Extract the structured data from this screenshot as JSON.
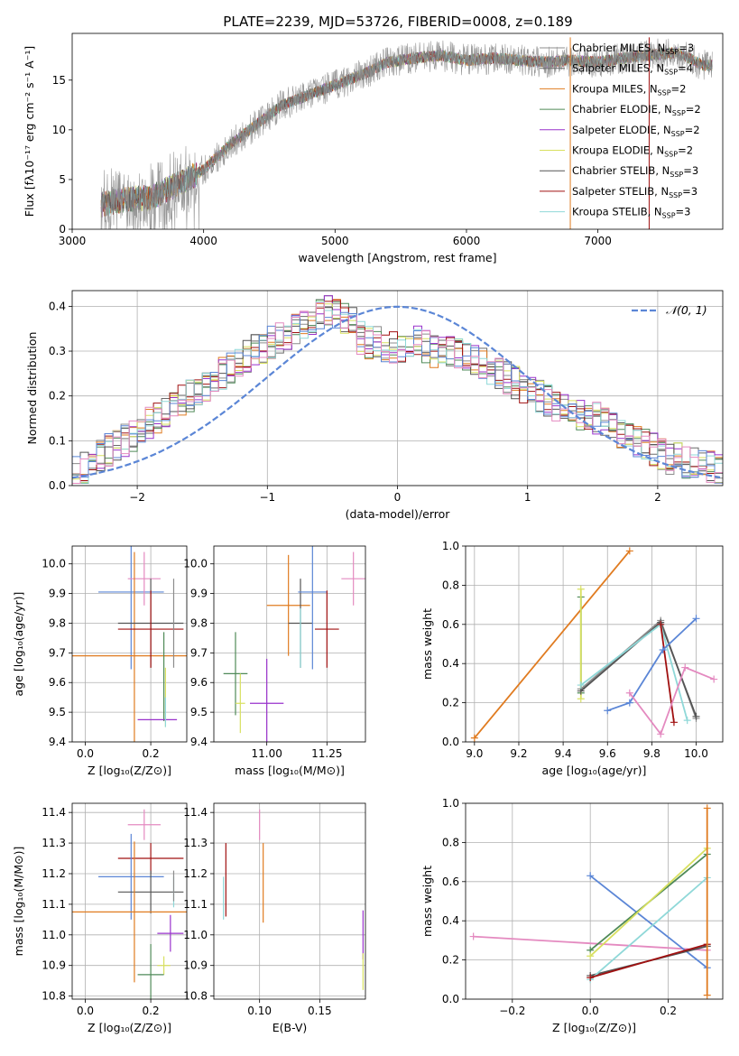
{
  "title": "PLATE=2239, MJD=53726, FIBERID=0008, z=0.189",
  "colors": {
    "Chabrier MILES": "#8c8c8c",
    "Salpeter MILES": "#6a6a6a",
    "Kroupa MILES": "#e07b20",
    "Chabrier ELODIE": "#4f8a58",
    "Salpeter ELODIE": "#9932cc",
    "Kroupa ELODIE": "#d8e060",
    "Chabrier STELIB": "#555555",
    "Salpeter STELIB": "#a01010",
    "Kroupa STELIB": "#8fd8d8",
    "blue": "#5b86d6",
    "pink": "#e48ac0"
  },
  "chart_data": [
    {
      "type": "line",
      "name": "spectrum",
      "xlabel": "wavelength [Angstrom, rest frame]",
      "ylabel": "Flux [fλ10⁻¹⁷ erg cm⁻² s⁻¹ A⁻¹]",
      "xlim": [
        3000,
        7950
      ],
      "ylim": [
        0,
        19.7
      ],
      "xticks": [
        "3000",
        "4000",
        "5000",
        "6000",
        "7000"
      ],
      "yticks": [
        "0",
        "5",
        "10",
        "15"
      ],
      "x": [
        3220,
        3400,
        3600,
        3800,
        4000,
        4200,
        4400,
        4600,
        4800,
        5000,
        5200,
        5400,
        5600,
        5800,
        6000,
        6200,
        6400,
        6600,
        6800,
        7000,
        7200,
        7400,
        7600,
        7800
      ],
      "y": [
        2.5,
        3.0,
        3.2,
        4.5,
        6.0,
        8.5,
        10.5,
        12.5,
        13.5,
        14.5,
        15.5,
        16.8,
        17.2,
        17.5,
        17.0,
        17.2,
        17.0,
        16.8,
        17.0,
        16.8,
        17.2,
        17.5,
        17.8,
        16.5
      ],
      "legend": [
        {
          "label": "Chabrier MILES, N",
          "sub": "SSP",
          "n": "=3"
        },
        {
          "label": "Salpeter MILES, N",
          "sub": "SSP",
          "n": "=4"
        },
        {
          "label": "Kroupa MILES, N",
          "sub": "SSP",
          "n": "=2"
        },
        {
          "label": "Chabrier ELODIE, N",
          "sub": "SSP",
          "n": "=2"
        },
        {
          "label": "Salpeter ELODIE, N",
          "sub": "SSP",
          "n": "=2"
        },
        {
          "label": "Kroupa ELODIE, N",
          "sub": "SSP",
          "n": "=2"
        },
        {
          "label": "Chabrier STELIB, N",
          "sub": "SSP",
          "n": "=3"
        },
        {
          "label": "Salpeter STELIB, N",
          "sub": "SSP",
          "n": "=3"
        },
        {
          "label": "Kroupa STELIB, N",
          "sub": "SSP",
          "n": "=3"
        }
      ],
      "legend_placement": "right"
    },
    {
      "type": "line",
      "name": "residual-histogram",
      "xlabel": "(data-model)/error",
      "ylabel": "Normed distribution",
      "xlim": [
        -2.5,
        2.5
      ],
      "ylim": [
        0,
        0.435
      ],
      "xticks": [
        "−2",
        "−1",
        "0",
        "1",
        "2"
      ],
      "yticks": [
        "0.0",
        "0.1",
        "0.2",
        "0.3",
        "0.4"
      ],
      "grid": true,
      "gaussian_label": "𝒩(0, 1)",
      "legend_placement": "top-right",
      "bin_width": 0.1,
      "bin_start": -2.5,
      "hist_base": [
        0.03,
        0.04,
        0.05,
        0.07,
        0.08,
        0.09,
        0.1,
        0.11,
        0.12,
        0.14,
        0.15,
        0.16,
        0.18,
        0.19,
        0.2,
        0.21,
        0.22,
        0.24,
        0.25,
        0.26,
        0.27,
        0.29,
        0.3,
        0.31,
        0.32,
        0.33,
        0.34,
        0.35,
        0.36,
        0.37,
        0.38,
        0.39,
        0.38,
        0.37,
        0.36,
        0.33,
        0.32,
        0.32,
        0.31,
        0.31,
        0.3,
        0.31,
        0.32,
        0.31,
        0.3,
        0.31,
        0.3,
        0.29,
        0.29,
        0.28,
        0.27,
        0.26,
        0.25,
        0.24,
        0.23,
        0.22,
        0.21,
        0.2,
        0.19,
        0.18,
        0.17,
        0.16,
        0.16,
        0.15,
        0.15,
        0.14,
        0.13,
        0.12,
        0.11,
        0.1,
        0.09,
        0.08,
        0.07,
        0.06,
        0.06,
        0.05,
        0.05,
        0.05,
        0.04,
        0.04
      ],
      "hist_series": [
        "Chabrier MILES",
        "Salpeter MILES",
        "Kroupa MILES",
        "Chabrier ELODIE",
        "Salpeter ELODIE",
        "Kroupa ELODIE",
        "Chabrier STELIB",
        "Salpeter STELIB",
        "Kroupa STELIB",
        "blue",
        "pink"
      ]
    },
    {
      "type": "scatter",
      "name": "age-vs-Z",
      "xlabel": "Z [log₁₀(Z/Z⊙)]",
      "ylabel": "age  [log₁₀(age/yr)]",
      "xlim": [
        -0.04,
        0.31
      ],
      "ylim": [
        9.4,
        10.06
      ],
      "xticks": [
        {
          "v": 0.0,
          "t": "0.0"
        },
        {
          "v": 0.2,
          "t": "0.2"
        }
      ],
      "yticks": [
        {
          "v": 9.4,
          "t": "9.4"
        },
        {
          "v": 9.5,
          "t": "9.5"
        },
        {
          "v": 9.6,
          "t": "9.6"
        },
        {
          "v": 9.7,
          "t": "9.7"
        },
        {
          "v": 9.8,
          "t": "9.8"
        },
        {
          "v": 9.9,
          "t": "9.9"
        },
        {
          "v": 10.0,
          "t": "10.0"
        }
      ],
      "points": [
        {
          "c": "blue",
          "x": 0.14,
          "xe": 0.1,
          "y": 9.905,
          "ye": 0.26
        },
        {
          "c": "pink",
          "x": 0.18,
          "xe": 0.05,
          "y": 9.95,
          "ye": 0.09
        },
        {
          "c": "Kroupa MILES",
          "x": 0.15,
          "xe": 0.24,
          "y": 9.69,
          "ye": 0.35
        },
        {
          "c": "Chabrier STELIB",
          "x": 0.2,
          "xe": 0.1,
          "y": 9.8,
          "ye": 0.15
        },
        {
          "c": "Salpeter STELIB",
          "x": 0.2,
          "xe": 0.1,
          "y": 9.78,
          "ye": 0.13
        },
        {
          "c": "Chabrier ELODIE",
          "x": 0.24,
          "xe": 0.0,
          "y": 9.62,
          "ye": 0.15
        },
        {
          "c": "Kroupa ELODIE",
          "x": 0.245,
          "xe": 0.0,
          "y": 9.55,
          "ye": 0.1
        },
        {
          "c": "Salpeter ELODIE",
          "x": 0.22,
          "xe": 0.06,
          "y": 9.475,
          "ye": 0.0
        },
        {
          "c": "Kroupa STELIB",
          "x": 0.245,
          "xe": 0.0,
          "y": 9.5,
          "ye": 0.05
        },
        {
          "c": "Chabrier MILES",
          "x": 0.27,
          "xe": 0.0,
          "y": 9.8,
          "ye": 0.15
        }
      ]
    },
    {
      "type": "scatter",
      "name": "age-vs-mass",
      "xlabel": "mass [log₁₀(M/M⊙)]",
      "ylabel": "",
      "xlim": [
        10.78,
        11.41
      ],
      "ylim": [
        9.4,
        10.06
      ],
      "xticks": [
        {
          "v": 11.0,
          "t": "11.00"
        },
        {
          "v": 11.25,
          "t": "11.25"
        }
      ],
      "yticks": [
        {
          "v": 9.4,
          "t": "9.4"
        },
        {
          "v": 9.5,
          "t": "9.5"
        },
        {
          "v": 9.6,
          "t": "9.6"
        },
        {
          "v": 9.7,
          "t": "9.7"
        },
        {
          "v": 9.8,
          "t": "9.8"
        },
        {
          "v": 9.9,
          "t": "9.9"
        },
        {
          "v": 10.0,
          "t": "10.0"
        }
      ],
      "points": [
        {
          "c": "Chabrier ELODIE",
          "x": 10.87,
          "xe": 0.05,
          "y": 9.63,
          "ye": 0.14
        },
        {
          "c": "Kroupa ELODIE",
          "x": 10.89,
          "xe": 0.02,
          "y": 9.53,
          "ye": 0.1
        },
        {
          "c": "Salpeter ELODIE",
          "x": 11.0,
          "xe": 0.07,
          "y": 9.53,
          "ye": 0.15
        },
        {
          "c": "Kroupa MILES",
          "x": 11.09,
          "xe": 0.09,
          "y": 9.86,
          "ye": 0.17
        },
        {
          "c": "Chabrier STELIB",
          "x": 11.14,
          "xe": 0.05,
          "y": 9.8,
          "ye": 0.15
        },
        {
          "c": "Kroupa STELIB",
          "x": 11.14,
          "xe": 0.0,
          "y": 9.75,
          "ye": 0.1
        },
        {
          "c": "blue",
          "x": 11.19,
          "xe": 0.06,
          "y": 9.905,
          "ye": 0.26
        },
        {
          "c": "Salpeter STELIB",
          "x": 11.25,
          "xe": 0.05,
          "y": 9.78,
          "ye": 0.13
        },
        {
          "c": "pink",
          "x": 11.36,
          "xe": 0.05,
          "y": 9.95,
          "ye": 0.09
        }
      ]
    },
    {
      "type": "line",
      "name": "mass-weight-vs-age",
      "xlabel": "age  [log₁₀(age/yr)]",
      "ylabel": "mass weight",
      "xlim": [
        8.96,
        10.12
      ],
      "ylim": [
        0,
        1.0
      ],
      "xticks": [
        {
          "v": 9.0,
          "t": "9.0"
        },
        {
          "v": 9.2,
          "t": "9.2"
        },
        {
          "v": 9.4,
          "t": "9.4"
        },
        {
          "v": 9.6,
          "t": "9.6"
        },
        {
          "v": 9.8,
          "t": "9.8"
        },
        {
          "v": 10.0,
          "t": "10.0"
        }
      ],
      "yticks": [
        {
          "v": 0.0,
          "t": "0.0"
        },
        {
          "v": 0.2,
          "t": "0.2"
        },
        {
          "v": 0.4,
          "t": "0.4"
        },
        {
          "v": 0.6,
          "t": "0.6"
        },
        {
          "v": 0.8,
          "t": "0.8"
        },
        {
          "v": 1.0,
          "t": "1.0"
        }
      ],
      "grid": true,
      "series": [
        {
          "c": "Kroupa MILES",
          "x": [
            9.0,
            9.7
          ],
          "y": [
            0.02,
            0.975
          ]
        },
        {
          "c": "Chabrier ELODIE",
          "x": [
            9.48,
            9.48
          ],
          "y": [
            0.25,
            0.74
          ]
        },
        {
          "c": "Kroupa ELODIE",
          "x": [
            9.48,
            9.48
          ],
          "y": [
            0.22,
            0.78
          ]
        },
        {
          "c": "Chabrier MILES",
          "x": [
            9.48,
            9.84,
            10.0
          ],
          "y": [
            0.27,
            0.62,
            0.12
          ]
        },
        {
          "c": "Chabrier STELIB",
          "x": [
            9.48,
            9.84,
            10.0
          ],
          "y": [
            0.26,
            0.61,
            0.13
          ]
        },
        {
          "c": "Kroupa STELIB",
          "x": [
            9.48,
            9.84,
            9.96
          ],
          "y": [
            0.29,
            0.6,
            0.11
          ]
        },
        {
          "c": "Salpeter STELIB",
          "x": [
            9.84,
            9.9
          ],
          "y": [
            0.6,
            0.1
          ]
        },
        {
          "c": "blue",
          "x": [
            9.6,
            9.7,
            9.85,
            10.0
          ],
          "y": [
            0.16,
            0.2,
            0.47,
            0.63
          ]
        },
        {
          "c": "pink",
          "x": [
            9.7,
            9.84,
            9.95,
            10.08
          ],
          "y": [
            0.25,
            0.04,
            0.38,
            0.32
          ]
        }
      ]
    },
    {
      "type": "scatter",
      "name": "mass-vs-Z",
      "xlabel": "Z [log₁₀(Z/Z⊙)]",
      "ylabel": "mass [log₁₀(M/M⊙)]",
      "xlim": [
        -0.04,
        0.31
      ],
      "ylim": [
        10.79,
        11.43
      ],
      "xticks": [
        {
          "v": 0.0,
          "t": "0.0"
        },
        {
          "v": 0.2,
          "t": "0.2"
        }
      ],
      "yticks": [
        {
          "v": 10.8,
          "t": "10.8"
        },
        {
          "v": 10.9,
          "t": "10.9"
        },
        {
          "v": 11.0,
          "t": "11.0"
        },
        {
          "v": 11.1,
          "t": "11.1"
        },
        {
          "v": 11.2,
          "t": "11.2"
        },
        {
          "v": 11.3,
          "t": "11.3"
        },
        {
          "v": 11.4,
          "t": "11.4"
        }
      ],
      "points": [
        {
          "c": "pink",
          "x": 0.18,
          "xe": 0.05,
          "y": 11.36,
          "ye": 0.05
        },
        {
          "c": "Salpeter STELIB",
          "x": 0.2,
          "xe": 0.1,
          "y": 11.25,
          "ye": 0.05
        },
        {
          "c": "blue",
          "x": 0.14,
          "xe": 0.1,
          "y": 11.19,
          "ye": 0.14
        },
        {
          "c": "Chabrier STELIB",
          "x": 0.2,
          "xe": 0.1,
          "y": 11.14,
          "ye": 0.07
        },
        {
          "c": "Kroupa MILES",
          "x": 0.15,
          "xe": 0.24,
          "y": 11.075,
          "ye": 0.23
        },
        {
          "c": "Salpeter ELODIE",
          "x": 0.26,
          "xe": 0.04,
          "y": 11.005,
          "ye": 0.06
        },
        {
          "c": "Kroupa ELODIE",
          "x": 0.24,
          "xe": 0.02,
          "y": 10.9,
          "ye": 0.03
        },
        {
          "c": "Chabrier ELODIE",
          "x": 0.2,
          "xe": 0.04,
          "y": 10.87,
          "ye": 0.1
        },
        {
          "c": "Kroupa STELIB",
          "x": 0.27,
          "xe": 0.0,
          "y": 11.14,
          "ye": 0.05
        },
        {
          "c": "Chabrier MILES",
          "x": 0.27,
          "xe": 0.0,
          "y": 11.16,
          "ye": 0.05
        }
      ]
    },
    {
      "type": "scatter",
      "name": "mass-vs-EBV",
      "xlabel": "E(B-V)",
      "ylabel": "",
      "xlim": [
        0.062,
        0.188
      ],
      "ylim": [
        10.79,
        11.43
      ],
      "xticks": [
        {
          "v": 0.1,
          "t": "0.10"
        },
        {
          "v": 0.15,
          "t": "0.15"
        }
      ],
      "yticks": [
        {
          "v": 10.8,
          "t": "10.8"
        },
        {
          "v": 10.9,
          "t": "10.9"
        },
        {
          "v": 11.0,
          "t": "11.0"
        },
        {
          "v": 11.1,
          "t": "11.1"
        },
        {
          "v": 11.2,
          "t": "11.2"
        },
        {
          "v": 11.3,
          "t": "11.3"
        },
        {
          "v": 11.4,
          "t": "11.4"
        }
      ],
      "points": [
        {
          "c": "pink",
          "x": 0.1,
          "xe": 0.0,
          "y": 11.36,
          "ye": 0.05
        },
        {
          "c": "Kroupa MILES",
          "x": 0.103,
          "xe": 0.0,
          "y": 11.17,
          "ye": 0.13
        },
        {
          "c": "Salpeter STELIB",
          "x": 0.072,
          "xe": 0.0,
          "y": 11.18,
          "ye": 0.12
        },
        {
          "c": "Kroupa STELIB",
          "x": 0.07,
          "xe": 0.0,
          "y": 11.12,
          "ye": 0.07
        },
        {
          "c": "Salpeter ELODIE",
          "x": 0.186,
          "xe": 0.0,
          "y": 11.0,
          "ye": 0.08
        },
        {
          "c": "Kroupa ELODIE",
          "x": 0.186,
          "xe": 0.0,
          "y": 10.88,
          "ye": 0.06
        }
      ]
    },
    {
      "type": "line",
      "name": "mass-weight-vs-Z",
      "xlabel": "Z [log₁₀(Z/Z⊙)]",
      "ylabel": "mass weight",
      "xlim": [
        -0.32,
        0.34
      ],
      "ylim": [
        0,
        1.0
      ],
      "xticks": [
        {
          "v": -0.2,
          "t": "−0.2"
        },
        {
          "v": 0.0,
          "t": "0.0"
        },
        {
          "v": 0.2,
          "t": "0.2"
        }
      ],
      "yticks": [
        {
          "v": 0.0,
          "t": "0.0"
        },
        {
          "v": 0.2,
          "t": "0.2"
        },
        {
          "v": 0.4,
          "t": "0.4"
        },
        {
          "v": 0.6,
          "t": "0.6"
        },
        {
          "v": 0.8,
          "t": "0.8"
        },
        {
          "v": 1.0,
          "t": "1.0"
        }
      ],
      "grid": true,
      "series": [
        {
          "c": "pink",
          "x": [
            -0.3,
            0.3
          ],
          "y": [
            0.32,
            0.25
          ]
        },
        {
          "c": "blue",
          "x": [
            0.0,
            0.3
          ],
          "y": [
            0.63,
            0.16
          ]
        },
        {
          "c": "Chabrier ELODIE",
          "x": [
            0.0,
            0.3
          ],
          "y": [
            0.25,
            0.74
          ]
        },
        {
          "c": "Kroupa ELODIE",
          "x": [
            0.0,
            0.3
          ],
          "y": [
            0.22,
            0.77
          ]
        },
        {
          "c": "Chabrier STELIB",
          "x": [
            0.0,
            0.3
          ],
          "y": [
            0.12,
            0.27
          ]
        },
        {
          "c": "Kroupa STELIB",
          "x": [
            0.0,
            0.3
          ],
          "y": [
            0.1,
            0.62
          ]
        },
        {
          "c": "Salpeter STELIB",
          "x": [
            0.0,
            0.3
          ],
          "y": [
            0.11,
            0.28
          ]
        },
        {
          "c": "Kroupa MILES",
          "x": [
            0.3,
            0.3
          ],
          "y": [
            0.02,
            0.975
          ]
        }
      ]
    }
  ]
}
